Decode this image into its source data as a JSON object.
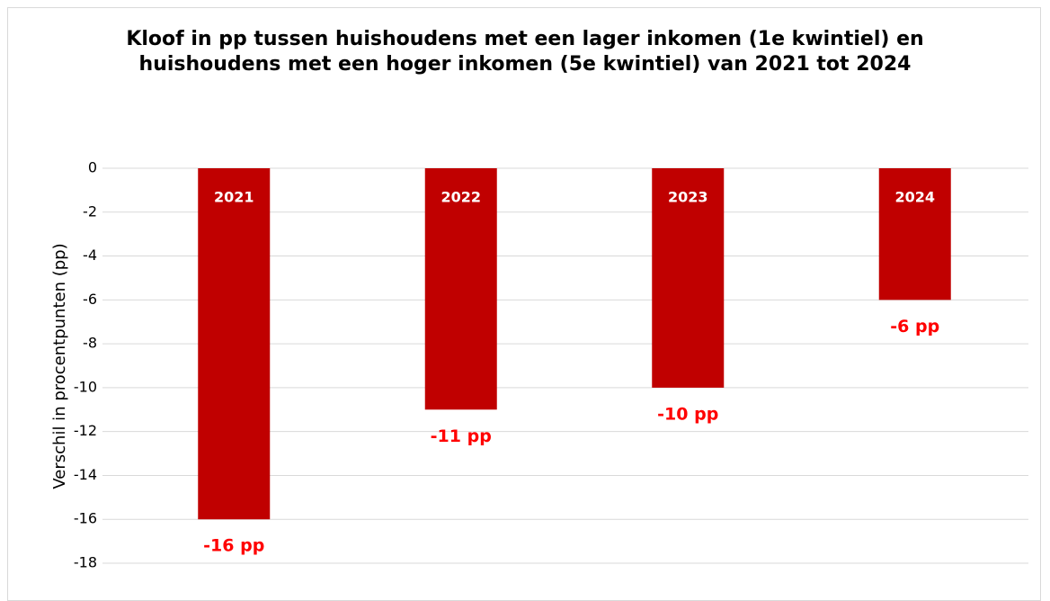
{
  "chart_data": {
    "type": "bar",
    "title": "Kloof in pp tussen huishoudens met een lager inkomen (1e kwintiel) en huishoudens met een hoger inkomen (5e kwintiel) van 2021 tot 2024",
    "y_label": "Verschil in procentpunten (pp)",
    "categories": [
      "2021",
      "2022",
      "2023",
      "2024"
    ],
    "values": [
      -16,
      -11,
      -10,
      -6
    ],
    "value_labels": [
      "-16 pp",
      "-11 pp",
      "-10 pp",
      "-6 pp"
    ],
    "color": "#c00000",
    "label_color": "#ff0000",
    "ylim": [
      -18,
      0
    ],
    "yticks": [
      0,
      -2,
      -4,
      -6,
      -8,
      -10,
      -12,
      -14,
      -16,
      -18
    ],
    "grid": true
  }
}
